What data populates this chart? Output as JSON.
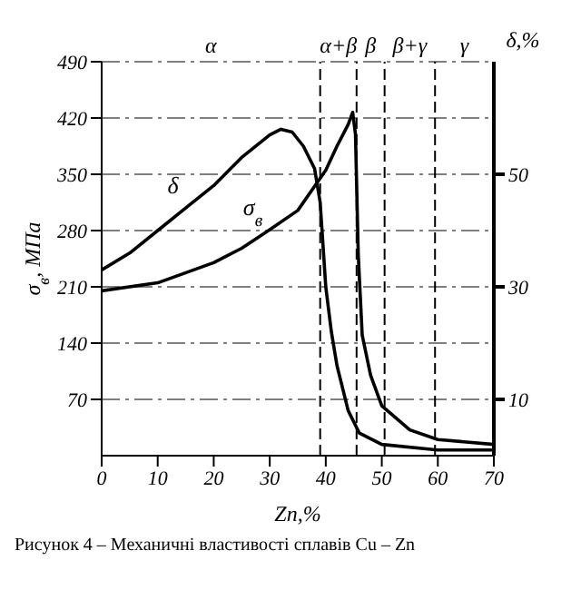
{
  "chart_data": {
    "type": "line",
    "xlabel": "Zn,%",
    "ylabel": "σ$_{в}$, МПа",
    "y2label": "δ,%",
    "xlim": [
      0,
      70
    ],
    "xticks": [
      0,
      10,
      20,
      30,
      40,
      50,
      60,
      70
    ],
    "ylim": [
      0,
      490
    ],
    "yticks": [
      70,
      140,
      210,
      280,
      350,
      420,
      490
    ],
    "y2lim": [
      0,
      70
    ],
    "y2ticks": [
      10,
      30,
      50
    ],
    "grid": true,
    "marker": "none",
    "line_style": "solid",
    "series": [
      {
        "name": "δ",
        "color": "#000000",
        "axis": "y2",
        "x": [
          0,
          5,
          10,
          15,
          20,
          25,
          30,
          32,
          34,
          36,
          38,
          39,
          40,
          41,
          42,
          44,
          46,
          50,
          60,
          70
        ],
        "values": [
          33,
          36,
          40,
          44,
          48,
          53,
          57,
          58,
          57.5,
          55,
          51,
          45,
          30,
          22,
          16,
          8,
          4,
          2,
          1,
          1
        ]
      },
      {
        "name": "σ$_{в}$",
        "color": "#000000",
        "x": [
          0,
          10,
          20,
          25,
          30,
          35,
          38,
          40,
          42,
          44,
          44.8,
          45.3,
          45.8,
          46.5,
          48,
          50,
          55,
          60,
          70
        ],
        "values": [
          205,
          215,
          240,
          258,
          281,
          305,
          335,
          355,
          385,
          412,
          427,
          400,
          250,
          150,
          100,
          62,
          32,
          20,
          14
        ]
      }
    ],
    "ref_lines": [
      {
        "axis": "x",
        "value": 39,
        "line_style": "dashed"
      },
      {
        "axis": "x",
        "value": 45.5,
        "line_style": "dashed"
      },
      {
        "axis": "x",
        "value": 50.5,
        "line_style": "dashed"
      },
      {
        "axis": "x",
        "value": 59.5,
        "line_style": "dashed"
      }
    ],
    "annotations": [
      "α",
      "α+β",
      "β",
      "β+γ",
      "γ",
      "Рисунок 4 – Механичні властивості сплавів Cu – Zn"
    ]
  }
}
